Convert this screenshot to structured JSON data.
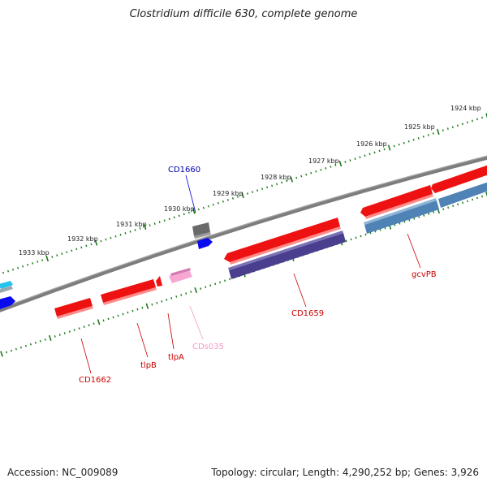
{
  "title": "Clostridium difficile 630, complete genome",
  "footer": {
    "accession": "Accession: NC_009089",
    "summary": "Topology: circular; Length: 4,290,252 bp; Genes: 3,926"
  },
  "ticks": [
    "1924 kbp",
    "1925 kbp",
    "1926 kbp",
    "1927 kbp",
    "1928 kbp",
    "1929 kbp",
    "1930 kbp",
    "1931 kbp",
    "1932 kbp",
    "1933 kbp"
  ],
  "labels": {
    "cd1660": "CD1660",
    "gcvpb": "gcvPB",
    "cd1659": "CD1659",
    "cds035": "CDs035",
    "tlpa": "tlpA",
    "tlpb": "tlpB",
    "cd1662": "CD1662"
  },
  "colors": {
    "backbone": "#7a7a7a",
    "tick": "#1a7a1a",
    "gene_red": "#ee1111",
    "gene_red_label": "#cc0000",
    "gene_blue": "#0a0aee",
    "gene_navy": "#4a3f8f",
    "gene_steel": "#4f83b5",
    "gene_pink": "#f5a2cf",
    "gene_grey": "#666666",
    "gene_cyan": "#22c4ee",
    "label_blue": "#0000aa",
    "label_pink": "#f29ac9"
  }
}
